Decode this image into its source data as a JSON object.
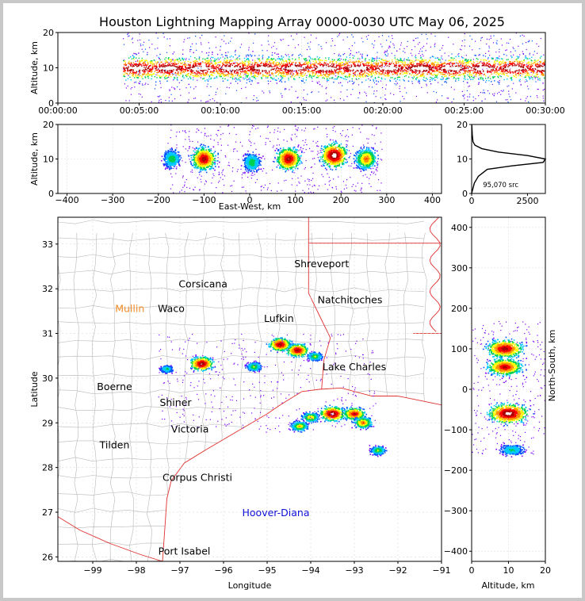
{
  "chart_data": {
    "type": "scatter",
    "title": "Houston Lightning Mapping Array 0000-0030 UTC May 06, 2025",
    "time_altitude": {
      "ylabel": "Altitude, km",
      "ylim": [
        0,
        20
      ],
      "yticks": [
        "0",
        "10",
        "20"
      ],
      "xticks": [
        "00:00:00",
        "00:05:00",
        "00:10:00",
        "00:15:00",
        "00:20:00",
        "00:25:00",
        "00:30:00"
      ],
      "activity_start": "00:04:00",
      "activity_end": "00:30:00",
      "core_altitude_range": [
        4,
        16
      ]
    },
    "ew_altitude": {
      "xlabel": "East-West, km",
      "ylabel": "Altitude, km",
      "xlim": [
        -420,
        420
      ],
      "ylim": [
        0,
        20
      ],
      "xticks": [
        "−400",
        "−300",
        "−200",
        "−100",
        "0",
        "100",
        "200",
        "300",
        "400"
      ],
      "yticks": [
        "0",
        "10",
        "20"
      ],
      "clusters": [
        {
          "x": -170,
          "alt": 10,
          "intensity": 0.45
        },
        {
          "x": -100,
          "alt": 10,
          "intensity": 0.9
        },
        {
          "x": 5,
          "alt": 9,
          "intensity": 0.45
        },
        {
          "x": 85,
          "alt": 10,
          "intensity": 0.9
        },
        {
          "x": 185,
          "alt": 11,
          "intensity": 1.0
        },
        {
          "x": 255,
          "alt": 10,
          "intensity": 0.7
        }
      ]
    },
    "altitude_histogram": {
      "xticks": [
        "0",
        "2500"
      ],
      "yticks": [
        "0",
        "10",
        "20"
      ],
      "xlim": [
        0,
        3300
      ],
      "annotation": "95,070 src",
      "profile": [
        [
          0,
          0
        ],
        [
          40,
          1
        ],
        [
          120,
          3
        ],
        [
          300,
          5
        ],
        [
          700,
          7
        ],
        [
          1800,
          8
        ],
        [
          3200,
          9
        ],
        [
          3300,
          10
        ],
        [
          2500,
          11
        ],
        [
          1200,
          12
        ],
        [
          450,
          13
        ],
        [
          150,
          14
        ],
        [
          60,
          15
        ],
        [
          30,
          17
        ],
        [
          15,
          19
        ],
        [
          5,
          20
        ]
      ]
    },
    "map": {
      "xlabel": "Longitude",
      "ylabel": "Latitude",
      "xlim": [
        -99.8,
        -91
      ],
      "ylim": [
        25.9,
        33.6
      ],
      "xticks": [
        "−99",
        "−98",
        "−97",
        "−96",
        "−95",
        "−94",
        "−93",
        "−92",
        "−91"
      ],
      "yticks": [
        "26",
        "27",
        "28",
        "29",
        "30",
        "31",
        "32",
        "33"
      ],
      "cities": [
        {
          "name": "Shreveport",
          "lon": -93.75,
          "lat": 32.55,
          "color": "#000000"
        },
        {
          "name": "Corsicana",
          "lon": -96.47,
          "lat": 32.1,
          "color": "#000000"
        },
        {
          "name": "Natchitoches",
          "lon": -93.1,
          "lat": 31.75,
          "color": "#000000"
        },
        {
          "name": "Mullin",
          "lon": -98.15,
          "lat": 31.55,
          "color": "#f28c28"
        },
        {
          "name": "Waco",
          "lon": -97.2,
          "lat": 31.55,
          "color": "#000000"
        },
        {
          "name": "Lufkin",
          "lon": -94.73,
          "lat": 31.33,
          "color": "#000000"
        },
        {
          "name": "Lake Charles",
          "lon": -93.0,
          "lat": 30.25,
          "color": "#000000"
        },
        {
          "name": "Boerne",
          "lon": -98.5,
          "lat": 29.8,
          "color": "#000000"
        },
        {
          "name": "Shiner",
          "lon": -97.1,
          "lat": 29.45,
          "color": "#000000"
        },
        {
          "name": "Victoria",
          "lon": -96.77,
          "lat": 28.85,
          "color": "#000000"
        },
        {
          "name": "Tilden",
          "lon": -98.5,
          "lat": 28.5,
          "color": "#000000"
        },
        {
          "name": "Corpus Christi",
          "lon": -96.6,
          "lat": 27.77,
          "color": "#000000"
        },
        {
          "name": "Hoover-Diana",
          "lon": -94.8,
          "lat": 26.98,
          "color": "#1010d8"
        },
        {
          "name": "Port Isabel",
          "lon": -96.9,
          "lat": 26.12,
          "color": "#000000"
        }
      ],
      "storms": [
        {
          "lon": -97.3,
          "lat": 30.2,
          "intensity": 0.4
        },
        {
          "lon": -96.5,
          "lat": 30.32,
          "intensity": 0.95
        },
        {
          "lon": -95.3,
          "lat": 30.25,
          "intensity": 0.5
        },
        {
          "lon": -94.7,
          "lat": 30.75,
          "intensity": 0.9
        },
        {
          "lon": -94.3,
          "lat": 30.62,
          "intensity": 0.9
        },
        {
          "lon": -93.9,
          "lat": 30.48,
          "intensity": 0.5
        },
        {
          "lon": -93.5,
          "lat": 29.2,
          "intensity": 1.0
        },
        {
          "lon": -93.0,
          "lat": 29.2,
          "intensity": 0.85
        },
        {
          "lon": -92.8,
          "lat": 29.0,
          "intensity": 0.7
        },
        {
          "lon": -94.0,
          "lat": 29.12,
          "intensity": 0.6
        },
        {
          "lon": -94.25,
          "lat": 28.92,
          "intensity": 0.6
        },
        {
          "lon": -92.45,
          "lat": 28.38,
          "intensity": 0.5
        }
      ]
    },
    "ns_altitude": {
      "xlabel": "Altitude, km",
      "ylabel": "North-South, km",
      "xlim": [
        0,
        20
      ],
      "ylim": [
        -425,
        425
      ],
      "xticks": [
        "0",
        "10",
        "20"
      ],
      "yticks": [
        "−400",
        "−300",
        "−200",
        "−100",
        "0",
        "100",
        "200",
        "300",
        "400"
      ],
      "clusters": [
        {
          "ns": 100,
          "alt": 9,
          "intensity": 0.9
        },
        {
          "ns": 55,
          "alt": 9,
          "intensity": 0.85
        },
        {
          "ns": -60,
          "alt": 10,
          "intensity": 1.0
        },
        {
          "ns": -150,
          "alt": 11,
          "intensity": 0.4
        }
      ]
    },
    "colors": {
      "scale": [
        "#7b00ff",
        "#0050ff",
        "#00c8ff",
        "#00d050",
        "#ffff00",
        "#ff9000",
        "#ff0000",
        "#aa0000",
        "#ffffff",
        "#808080"
      ]
    }
  }
}
